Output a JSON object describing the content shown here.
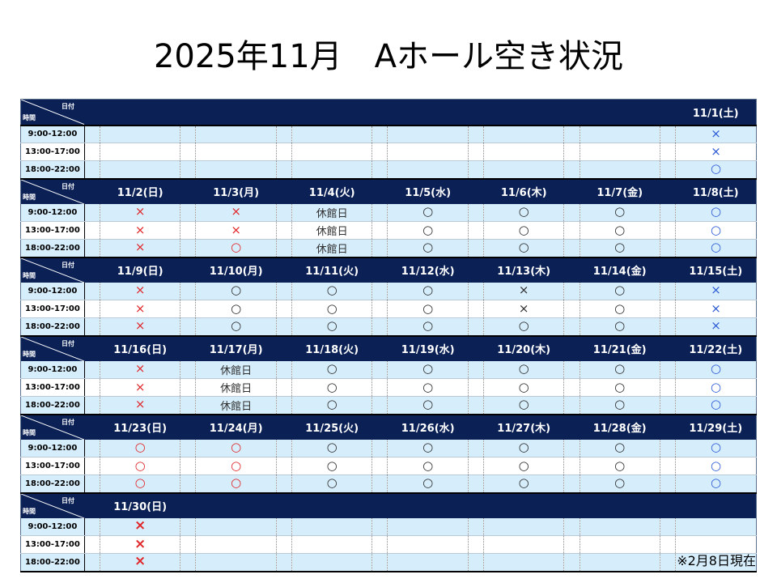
{
  "title": "2025年11月　Aホール空き状況",
  "note": "※2月8日現在",
  "corner": {
    "date_label": "日付",
    "time_label": "時間"
  },
  "slots": [
    "9:00-12:00",
    "13:00-17:00",
    "18:00-22:00"
  ],
  "colors": {
    "header": "#0b2156",
    "row_light": "#d6eefc",
    "available_weekend": "#2d5bd6",
    "booked_holiday": "#e0272a"
  },
  "weeks": [
    {
      "dates": [
        "",
        "",
        "",
        "",
        "",
        "",
        "11/1(土)"
      ],
      "cells": [
        [
          null,
          null,
          null,
          null,
          null,
          null,
          {
            "t": "×",
            "c": "blue"
          }
        ],
        [
          null,
          null,
          null,
          null,
          null,
          null,
          {
            "t": "×",
            "c": "blue"
          }
        ],
        [
          null,
          null,
          null,
          null,
          null,
          null,
          {
            "t": "○",
            "c": "blue"
          }
        ]
      ]
    },
    {
      "dates": [
        "11/2(日)",
        "11/3(月)",
        "11/4(火)",
        "11/5(水)",
        "11/6(木)",
        "11/7(金)",
        "11/8(土)"
      ],
      "cells": [
        [
          {
            "t": "×",
            "c": "red"
          },
          {
            "t": "×",
            "c": "red"
          },
          {
            "t": "休館日",
            "c": "black"
          },
          {
            "t": "○",
            "c": "black"
          },
          {
            "t": "○",
            "c": "black"
          },
          {
            "t": "○",
            "c": "black"
          },
          {
            "t": "○",
            "c": "blue"
          }
        ],
        [
          {
            "t": "×",
            "c": "red"
          },
          {
            "t": "×",
            "c": "red"
          },
          {
            "t": "休館日",
            "c": "black"
          },
          {
            "t": "○",
            "c": "black"
          },
          {
            "t": "○",
            "c": "black"
          },
          {
            "t": "○",
            "c": "black"
          },
          {
            "t": "○",
            "c": "blue"
          }
        ],
        [
          {
            "t": "×",
            "c": "red"
          },
          {
            "t": "○",
            "c": "red"
          },
          {
            "t": "休館日",
            "c": "black"
          },
          {
            "t": "○",
            "c": "black"
          },
          {
            "t": "○",
            "c": "black"
          },
          {
            "t": "○",
            "c": "black"
          },
          {
            "t": "○",
            "c": "blue"
          }
        ]
      ]
    },
    {
      "dates": [
        "11/9(日)",
        "11/10(月)",
        "11/11(火)",
        "11/12(水)",
        "11/13(木)",
        "11/14(金)",
        "11/15(土)"
      ],
      "cells": [
        [
          {
            "t": "×",
            "c": "red"
          },
          {
            "t": "○",
            "c": "black"
          },
          {
            "t": "○",
            "c": "black"
          },
          {
            "t": "○",
            "c": "black"
          },
          {
            "t": "×",
            "c": "black"
          },
          {
            "t": "○",
            "c": "black"
          },
          {
            "t": "×",
            "c": "blue"
          }
        ],
        [
          {
            "t": "×",
            "c": "red"
          },
          {
            "t": "○",
            "c": "black"
          },
          {
            "t": "○",
            "c": "black"
          },
          {
            "t": "○",
            "c": "black"
          },
          {
            "t": "×",
            "c": "black"
          },
          {
            "t": "○",
            "c": "black"
          },
          {
            "t": "×",
            "c": "blue"
          }
        ],
        [
          {
            "t": "×",
            "c": "red"
          },
          {
            "t": "○",
            "c": "black"
          },
          {
            "t": "○",
            "c": "black"
          },
          {
            "t": "○",
            "c": "black"
          },
          {
            "t": "○",
            "c": "black"
          },
          {
            "t": "○",
            "c": "black"
          },
          {
            "t": "×",
            "c": "blue"
          }
        ]
      ]
    },
    {
      "dates": [
        "11/16(日)",
        "11/17(月)",
        "11/18(火)",
        "11/19(水)",
        "11/20(木)",
        "11/21(金)",
        "11/22(土)"
      ],
      "cells": [
        [
          {
            "t": "×",
            "c": "red"
          },
          {
            "t": "休館日",
            "c": "black"
          },
          {
            "t": "○",
            "c": "black"
          },
          {
            "t": "○",
            "c": "black"
          },
          {
            "t": "○",
            "c": "black"
          },
          {
            "t": "○",
            "c": "black"
          },
          {
            "t": "○",
            "c": "blue"
          }
        ],
        [
          {
            "t": "×",
            "c": "red"
          },
          {
            "t": "休館日",
            "c": "black"
          },
          {
            "t": "○",
            "c": "black"
          },
          {
            "t": "○",
            "c": "black"
          },
          {
            "t": "○",
            "c": "black"
          },
          {
            "t": "○",
            "c": "black"
          },
          {
            "t": "○",
            "c": "blue"
          }
        ],
        [
          {
            "t": "×",
            "c": "red"
          },
          {
            "t": "休館日",
            "c": "black"
          },
          {
            "t": "○",
            "c": "black"
          },
          {
            "t": "○",
            "c": "black"
          },
          {
            "t": "○",
            "c": "black"
          },
          {
            "t": "○",
            "c": "black"
          },
          {
            "t": "○",
            "c": "blue"
          }
        ]
      ]
    },
    {
      "dates": [
        "11/23(日)",
        "11/24(月)",
        "11/25(火)",
        "11/26(水)",
        "11/27(木)",
        "11/28(金)",
        "11/29(土)"
      ],
      "cells": [
        [
          {
            "t": "○",
            "c": "red"
          },
          {
            "t": "○",
            "c": "red"
          },
          {
            "t": "○",
            "c": "black"
          },
          {
            "t": "○",
            "c": "black"
          },
          {
            "t": "○",
            "c": "black"
          },
          {
            "t": "○",
            "c": "black"
          },
          {
            "t": "○",
            "c": "blue"
          }
        ],
        [
          {
            "t": "○",
            "c": "red"
          },
          {
            "t": "○",
            "c": "red"
          },
          {
            "t": "○",
            "c": "black"
          },
          {
            "t": "○",
            "c": "black"
          },
          {
            "t": "○",
            "c": "black"
          },
          {
            "t": "○",
            "c": "black"
          },
          {
            "t": "○",
            "c": "blue"
          }
        ],
        [
          {
            "t": "○",
            "c": "red"
          },
          {
            "t": "○",
            "c": "red"
          },
          {
            "t": "○",
            "c": "black"
          },
          {
            "t": "○",
            "c": "black"
          },
          {
            "t": "○",
            "c": "black"
          },
          {
            "t": "○",
            "c": "black"
          },
          {
            "t": "○",
            "c": "blue"
          }
        ]
      ]
    },
    {
      "dates": [
        "11/30(日)",
        "",
        "",
        "",
        "",
        "",
        ""
      ],
      "cells": [
        [
          {
            "t": "×",
            "c": "red",
            "b": true
          },
          null,
          null,
          null,
          null,
          null,
          null
        ],
        [
          {
            "t": "×",
            "c": "red",
            "b": true
          },
          null,
          null,
          null,
          null,
          null,
          null
        ],
        [
          {
            "t": "×",
            "c": "red",
            "b": true
          },
          null,
          null,
          null,
          null,
          null,
          null
        ]
      ]
    }
  ]
}
